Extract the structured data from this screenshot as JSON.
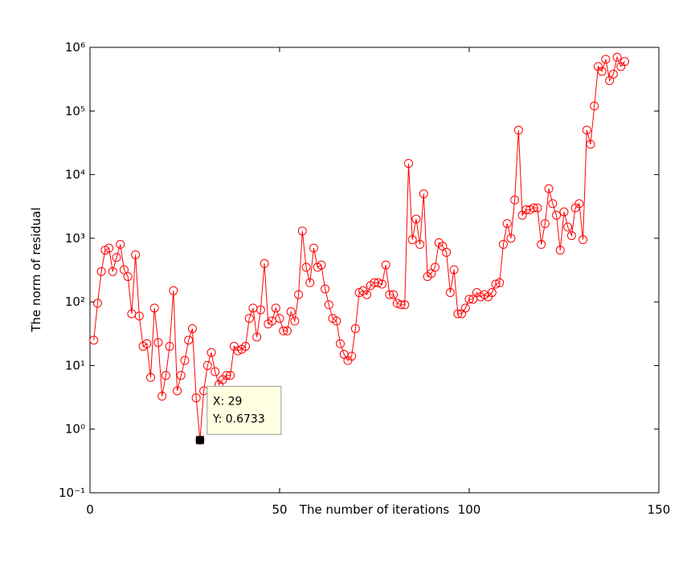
{
  "chart_data": {
    "type": "line",
    "xlabel": "The number of iterations",
    "ylabel": "The norm of residual",
    "log_y": true,
    "marker": "circle",
    "x": [
      1,
      2,
      3,
      4,
      5,
      6,
      7,
      8,
      9,
      10,
      11,
      12,
      13,
      14,
      15,
      16,
      17,
      18,
      19,
      20,
      21,
      22,
      23,
      24,
      25,
      26,
      27,
      28,
      29,
      30,
      31,
      32,
      33,
      34,
      35,
      36,
      37,
      38,
      39,
      40,
      41,
      42,
      43,
      44,
      45,
      46,
      47,
      48,
      49,
      50,
      51,
      52,
      53,
      54,
      55,
      56,
      57,
      58,
      59,
      60,
      61,
      62,
      63,
      64,
      65,
      66,
      67,
      68,
      69,
      70,
      71,
      72,
      73,
      74,
      75,
      76,
      77,
      78,
      79,
      80,
      81,
      82,
      83,
      84,
      85,
      86,
      87,
      88,
      89,
      90,
      91,
      92,
      93,
      94,
      95,
      96,
      97,
      98,
      99,
      100,
      101,
      102,
      103,
      104,
      105,
      106,
      107,
      108,
      109,
      110,
      111,
      112,
      113,
      114,
      115,
      116,
      117,
      118,
      119,
      120,
      121,
      122,
      123,
      124,
      125,
      126,
      127,
      128,
      129,
      130,
      131,
      132,
      133,
      134,
      135,
      136,
      137,
      138,
      139,
      140,
      141
    ],
    "series": [
      {
        "color": "#ff0000",
        "values": [
          25,
          95,
          300,
          650,
          700,
          300,
          500,
          800,
          320,
          250,
          65,
          550,
          60,
          20,
          22,
          6.5,
          80,
          23,
          3.3,
          7,
          20,
          150,
          4,
          7,
          12,
          25,
          38,
          3.1,
          0.6733,
          4,
          10,
          16,
          8,
          5,
          6,
          7,
          7,
          20,
          17,
          18,
          20,
          55,
          80,
          28,
          75,
          400,
          45,
          50,
          80,
          55,
          35,
          35,
          70,
          50,
          130,
          1300,
          350,
          200,
          700,
          350,
          380,
          160,
          90,
          55,
          50,
          22,
          15,
          12,
          14,
          38,
          140,
          150,
          130,
          180,
          200,
          200,
          190,
          380,
          130,
          130,
          95,
          90,
          90,
          15000,
          950,
          2000,
          800,
          5000,
          250,
          280,
          350,
          850,
          750,
          600,
          140,
          320,
          65,
          65,
          80,
          110,
          110,
          140,
          120,
          130,
          120,
          140,
          190,
          200,
          800,
          1700,
          1000,
          4000,
          50000,
          2300,
          2800,
          2800,
          3000,
          3000,
          800,
          1700,
          6000,
          3500,
          2300,
          650,
          2600,
          1500,
          1100,
          3000,
          3500,
          950,
          50000,
          30000,
          120000,
          500000,
          420000,
          650000,
          300000,
          380000,
          700000,
          500000,
          600000
        ]
      }
    ],
    "xlim": [
      0,
      150
    ],
    "xticks": [
      0,
      50,
      100,
      150
    ],
    "ylim": [
      0.1,
      1000000
    ],
    "yticks": [
      {
        "value": 0.1,
        "label": "10⁻¹"
      },
      {
        "value": 1,
        "label": "10⁰"
      },
      {
        "value": 10,
        "label": "10¹"
      },
      {
        "value": 100,
        "label": "10²"
      },
      {
        "value": 1000,
        "label": "10³"
      },
      {
        "value": 10000,
        "label": "10⁴"
      },
      {
        "value": 100000,
        "label": "10⁵"
      },
      {
        "value": 1000000,
        "label": "10⁶"
      }
    ],
    "datatip": {
      "x": 29,
      "y": 0.6733,
      "x_label": "X: 29",
      "y_label": "Y: 0.6733"
    }
  }
}
